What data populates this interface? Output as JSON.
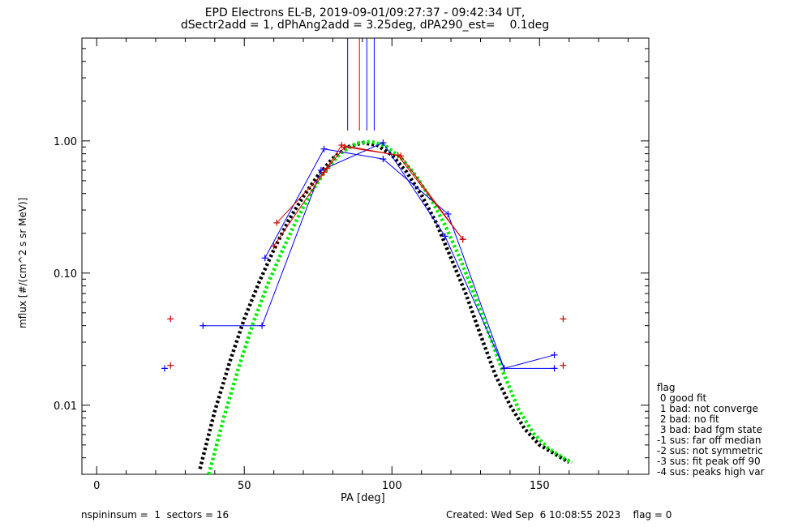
{
  "title_line1": "EPD Electrons EL-B, 2019-09-01/09:27:37 - 09:42:34 UT,",
  "title_line2": "dSectr2add = 1, dPhAng2add = 3.25deg, dPA290_est=    0.1deg",
  "footer_left": "nspininsum =  1  sectors = 16",
  "footer_right": "Created: Wed Sep  6 10:08:55 2023    flag = 0",
  "legend": {
    "title": "flag",
    "items": [
      " 0 good fit",
      " 1 bad: not converge",
      " 2 bad: no fit",
      " 3 bad: bad fgm state",
      "-1 sus: far off median",
      "-2 sus: not symmetric",
      "-3 sus: fit peak off 90",
      "-4 sus: peaks high var"
    ]
  },
  "colors": {
    "blue": "#0000ff",
    "red": "#cc0000",
    "black": "#000000",
    "green": "#00ee00"
  },
  "chart_data": {
    "type": "line",
    "xlabel": "PA [deg]",
    "ylabel": "mflux [#/(cm^2 s sr MeV)]",
    "xlim": [
      -5,
      187
    ],
    "ylim": [
      0.003,
      6
    ],
    "yscale": "log",
    "x_ticks": [
      0,
      50,
      100,
      150
    ],
    "y_ticks": [
      {
        "value": 0.01,
        "label": "0.01"
      },
      {
        "value": 0.1,
        "label": "0.10"
      },
      {
        "value": 1.0,
        "label": "1.00"
      }
    ],
    "vertical_markers": [
      {
        "x": 85,
        "color": "blue"
      },
      {
        "x": 89,
        "color": "red"
      },
      {
        "x": 91.5,
        "color": "blue"
      },
      {
        "x": 94,
        "color": "blue"
      }
    ],
    "series": [
      {
        "color": "blue",
        "marker": "+",
        "connected": true,
        "x": [
          36,
          56,
          76,
          97,
          118,
          138,
          155
        ],
        "y": [
          0.04,
          0.04,
          0.6,
          0.97,
          0.19,
          0.019,
          0.019
        ]
      },
      {
        "color": "blue",
        "marker": "+",
        "connected": true,
        "x": [
          57,
          77,
          97,
          119,
          138,
          155
        ],
        "y": [
          0.13,
          0.87,
          0.73,
          0.28,
          0.019,
          0.024
        ]
      },
      {
        "color": "blue",
        "marker": "+",
        "connected": false,
        "x": [
          23
        ],
        "y": [
          0.019
        ]
      },
      {
        "color": "red",
        "marker": "+",
        "connected": true,
        "x": [
          61,
          77,
          83,
          103,
          124
        ],
        "y": [
          0.24,
          0.58,
          0.93,
          0.77,
          0.18
        ]
      },
      {
        "color": "red",
        "marker": "+",
        "connected": true,
        "x": [
          60,
          78,
          84,
          102,
          124
        ],
        "y": [
          0.16,
          0.62,
          0.9,
          0.78,
          0.18
        ]
      },
      {
        "color": "red",
        "marker": "+",
        "connected": false,
        "x": [
          25,
          25,
          158,
          158
        ],
        "y": [
          0.045,
          0.02,
          0.045,
          0.02
        ]
      }
    ],
    "fits": [
      {
        "color": "black",
        "style": "dotted",
        "x": [
          35,
          40,
          45,
          50,
          55,
          60,
          65,
          70,
          75,
          80,
          85,
          90,
          95,
          100,
          105,
          110,
          115,
          120,
          125,
          130,
          135,
          140,
          145,
          150,
          155,
          160
        ],
        "y": [
          0.0033,
          0.009,
          0.021,
          0.045,
          0.085,
          0.15,
          0.25,
          0.38,
          0.55,
          0.74,
          0.9,
          0.97,
          0.93,
          0.78,
          0.58,
          0.39,
          0.24,
          0.13,
          0.07,
          0.034,
          0.017,
          0.01,
          0.0066,
          0.005,
          0.0043,
          0.0037
        ]
      },
      {
        "color": "green",
        "style": "dotted",
        "x": [
          38,
          43,
          48,
          53,
          58,
          63,
          68,
          73,
          78,
          83,
          88,
          93,
          98,
          103,
          108,
          113,
          118,
          123,
          128,
          133,
          138,
          143,
          148,
          153,
          158,
          161
        ],
        "y": [
          0.003,
          0.008,
          0.019,
          0.042,
          0.083,
          0.15,
          0.26,
          0.42,
          0.62,
          0.82,
          0.96,
          0.99,
          0.91,
          0.75,
          0.55,
          0.37,
          0.23,
          0.13,
          0.068,
          0.034,
          0.017,
          0.0092,
          0.0061,
          0.0047,
          0.004,
          0.0037
        ]
      }
    ]
  }
}
